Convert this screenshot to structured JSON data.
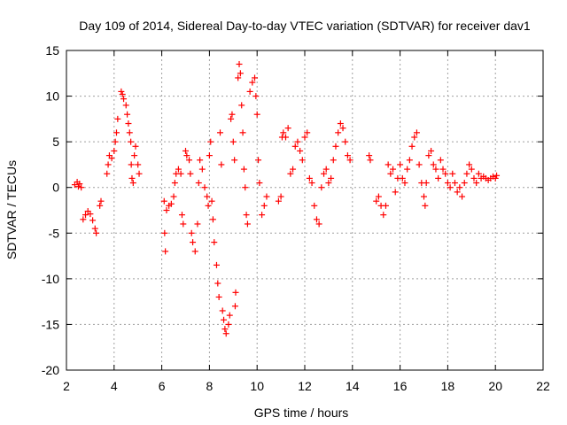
{
  "chart_data": {
    "type": "scatter",
    "title": "Day 109 of 2014, Sidereal Day-to-day VTEC variation (SDTVAR) for receiver dav1",
    "xlabel": "GPS time / hours",
    "ylabel": "SDTVAR / TECUs",
    "xlim": [
      2,
      22
    ],
    "ylim": [
      -20,
      15
    ],
    "xticks": [
      2,
      4,
      6,
      8,
      10,
      12,
      14,
      16,
      18,
      20,
      22
    ],
    "yticks": [
      15,
      10,
      5,
      0,
      -5,
      -10,
      -15,
      -20
    ],
    "grid": true,
    "legend": "none",
    "marker": "plus",
    "color": "#ff0000",
    "series": [
      {
        "name": "dav1",
        "points": [
          [
            2.35,
            0.3
          ],
          [
            2.45,
            0.6
          ],
          [
            2.5,
            0.1
          ],
          [
            2.55,
            0.4
          ],
          [
            2.62,
            0.0
          ],
          [
            2.7,
            -3.5
          ],
          [
            2.8,
            -3.0
          ],
          [
            2.9,
            -2.6
          ],
          [
            3.0,
            -2.9
          ],
          [
            3.1,
            -3.6
          ],
          [
            3.2,
            -4.5
          ],
          [
            3.25,
            -5.0
          ],
          [
            3.4,
            -2.0
          ],
          [
            3.45,
            -1.5
          ],
          [
            3.7,
            1.5
          ],
          [
            3.75,
            2.5
          ],
          [
            3.8,
            3.5
          ],
          [
            3.9,
            3.2
          ],
          [
            4.0,
            4.0
          ],
          [
            4.05,
            5.0
          ],
          [
            4.1,
            6.0
          ],
          [
            4.15,
            7.5
          ],
          [
            4.3,
            10.5
          ],
          [
            4.35,
            10.2
          ],
          [
            4.4,
            9.7
          ],
          [
            4.5,
            9.0
          ],
          [
            4.55,
            8.0
          ],
          [
            4.6,
            7.0
          ],
          [
            4.65,
            6.0
          ],
          [
            4.7,
            5.0
          ],
          [
            4.72,
            2.5
          ],
          [
            4.75,
            1.0
          ],
          [
            4.8,
            0.5
          ],
          [
            4.85,
            3.5
          ],
          [
            4.9,
            4.5
          ],
          [
            5.0,
            2.5
          ],
          [
            5.05,
            1.5
          ],
          [
            6.1,
            -1.5
          ],
          [
            6.12,
            -5.0
          ],
          [
            6.15,
            -7.0
          ],
          [
            6.2,
            -2.5
          ],
          [
            6.3,
            -2.0
          ],
          [
            6.4,
            -1.8
          ],
          [
            6.5,
            -1.0
          ],
          [
            6.55,
            0.5
          ],
          [
            6.6,
            1.5
          ],
          [
            6.7,
            2.0
          ],
          [
            6.8,
            1.5
          ],
          [
            6.85,
            -3.0
          ],
          [
            6.9,
            -4.0
          ],
          [
            7.0,
            4.0
          ],
          [
            7.05,
            3.5
          ],
          [
            7.15,
            3.0
          ],
          [
            7.2,
            1.5
          ],
          [
            7.25,
            -5.0
          ],
          [
            7.3,
            -6.0
          ],
          [
            7.4,
            -7.0
          ],
          [
            7.5,
            -4.0
          ],
          [
            7.55,
            0.5
          ],
          [
            7.6,
            3.0
          ],
          [
            7.7,
            2.0
          ],
          [
            7.8,
            0.0
          ],
          [
            7.9,
            -1.0
          ],
          [
            7.95,
            -2.0
          ],
          [
            8.0,
            3.5
          ],
          [
            8.05,
            5.0
          ],
          [
            8.1,
            -1.5
          ],
          [
            8.15,
            -3.5
          ],
          [
            8.2,
            -6.0
          ],
          [
            8.3,
            -8.5
          ],
          [
            8.35,
            -10.5
          ],
          [
            8.4,
            -12.0
          ],
          [
            8.45,
            6.0
          ],
          [
            8.5,
            2.5
          ],
          [
            8.55,
            -13.5
          ],
          [
            8.6,
            -14.5
          ],
          [
            8.65,
            -15.5
          ],
          [
            8.7,
            -16.0
          ],
          [
            8.8,
            -15.0
          ],
          [
            8.85,
            -14.0
          ],
          [
            8.9,
            7.5
          ],
          [
            8.95,
            8.0
          ],
          [
            9.0,
            5.0
          ],
          [
            9.05,
            3.0
          ],
          [
            9.08,
            -13.0
          ],
          [
            9.1,
            -11.5
          ],
          [
            9.2,
            12.0
          ],
          [
            9.25,
            13.5
          ],
          [
            9.3,
            12.5
          ],
          [
            9.35,
            9.0
          ],
          [
            9.4,
            6.0
          ],
          [
            9.45,
            2.0
          ],
          [
            9.5,
            0.0
          ],
          [
            9.55,
            -3.0
          ],
          [
            9.6,
            -4.0
          ],
          [
            9.7,
            10.5
          ],
          [
            9.8,
            11.5
          ],
          [
            9.9,
            12.0
          ],
          [
            9.95,
            10.0
          ],
          [
            10.0,
            8.0
          ],
          [
            10.05,
            3.0
          ],
          [
            10.1,
            0.5
          ],
          [
            10.2,
            -3.0
          ],
          [
            10.3,
            -2.0
          ],
          [
            10.4,
            -1.0
          ],
          [
            10.9,
            -1.5
          ],
          [
            11.0,
            -1.0
          ],
          [
            11.05,
            5.5
          ],
          [
            11.1,
            6.0
          ],
          [
            11.2,
            5.5
          ],
          [
            11.3,
            6.5
          ],
          [
            11.4,
            1.5
          ],
          [
            11.5,
            2.0
          ],
          [
            11.6,
            4.5
          ],
          [
            11.7,
            5.0
          ],
          [
            11.8,
            4.0
          ],
          [
            11.9,
            3.0
          ],
          [
            12.0,
            5.5
          ],
          [
            12.1,
            6.0
          ],
          [
            12.2,
            1.0
          ],
          [
            12.3,
            0.5
          ],
          [
            12.4,
            -2.0
          ],
          [
            12.5,
            -3.5
          ],
          [
            12.6,
            -4.0
          ],
          [
            12.7,
            0.0
          ],
          [
            12.8,
            1.5
          ],
          [
            12.9,
            2.0
          ],
          [
            13.0,
            0.5
          ],
          [
            13.1,
            1.0
          ],
          [
            13.2,
            3.0
          ],
          [
            13.3,
            4.5
          ],
          [
            13.4,
            6.0
          ],
          [
            13.5,
            7.0
          ],
          [
            13.6,
            6.5
          ],
          [
            13.7,
            5.0
          ],
          [
            13.8,
            3.5
          ],
          [
            13.9,
            3.0
          ],
          [
            14.7,
            3.5
          ],
          [
            14.75,
            3.0
          ],
          [
            15.0,
            -1.5
          ],
          [
            15.1,
            -1.0
          ],
          [
            15.2,
            -2.0
          ],
          [
            15.3,
            -3.0
          ],
          [
            15.4,
            -2.0
          ],
          [
            15.5,
            2.5
          ],
          [
            15.6,
            1.5
          ],
          [
            15.7,
            2.0
          ],
          [
            15.8,
            -0.5
          ],
          [
            15.9,
            1.0
          ],
          [
            16.0,
            2.5
          ],
          [
            16.1,
            1.0
          ],
          [
            16.2,
            0.5
          ],
          [
            16.3,
            2.0
          ],
          [
            16.4,
            3.0
          ],
          [
            16.5,
            4.5
          ],
          [
            16.6,
            5.5
          ],
          [
            16.7,
            6.0
          ],
          [
            16.8,
            2.5
          ],
          [
            16.9,
            0.5
          ],
          [
            17.0,
            -1.0
          ],
          [
            17.05,
            -2.0
          ],
          [
            17.1,
            0.5
          ],
          [
            17.2,
            3.5
          ],
          [
            17.3,
            4.0
          ],
          [
            17.4,
            2.5
          ],
          [
            17.5,
            2.0
          ],
          [
            17.6,
            1.0
          ],
          [
            17.7,
            3.0
          ],
          [
            17.8,
            2.0
          ],
          [
            17.9,
            1.5
          ],
          [
            18.0,
            0.5
          ],
          [
            18.1,
            0.0
          ],
          [
            18.2,
            1.5
          ],
          [
            18.3,
            0.5
          ],
          [
            18.4,
            -0.5
          ],
          [
            18.5,
            0.0
          ],
          [
            18.6,
            -1.0
          ],
          [
            18.7,
            0.5
          ],
          [
            18.8,
            1.5
          ],
          [
            18.9,
            2.5
          ],
          [
            19.0,
            2.0
          ],
          [
            19.1,
            1.0
          ],
          [
            19.2,
            0.5
          ],
          [
            19.3,
            1.5
          ],
          [
            19.4,
            1.0
          ],
          [
            19.5,
            1.2
          ],
          [
            19.6,
            1.0
          ],
          [
            19.7,
            0.8
          ],
          [
            19.8,
            1.0
          ],
          [
            19.9,
            1.2
          ],
          [
            20.0,
            1.0
          ],
          [
            20.05,
            1.3
          ]
        ]
      }
    ]
  }
}
